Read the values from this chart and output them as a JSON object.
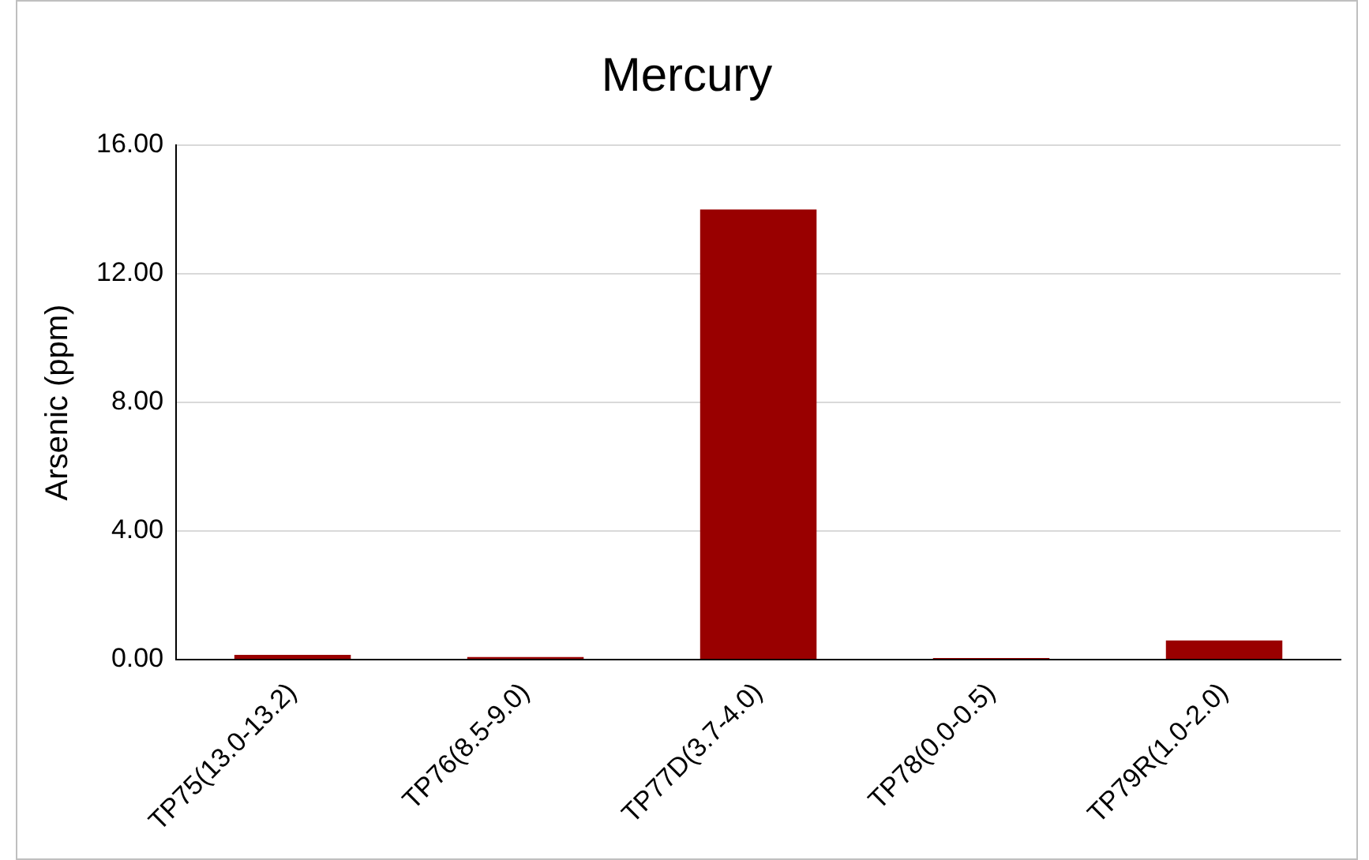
{
  "chart_data": {
    "type": "bar",
    "title": "Mercury",
    "ylabel": "Arsenic (ppm)",
    "categories": [
      "TP75(13.0-13.2)",
      "TP76(8.5-9.0)",
      "TP77D(3.7-4.0)",
      "TP78(0.0-0.5)",
      "TP79R(1.0-2.0)"
    ],
    "values": [
      0.15,
      0.08,
      14.0,
      0.05,
      0.6
    ],
    "color": "#990000",
    "ylim": [
      0,
      16
    ],
    "yticks": [
      {
        "value": 0,
        "label": "0.00"
      },
      {
        "value": 4,
        "label": "4.00"
      },
      {
        "value": 8,
        "label": "8.00"
      },
      {
        "value": 12,
        "label": "12.00"
      },
      {
        "value": 16,
        "label": "16.00"
      }
    ],
    "grid": "y",
    "legend": false
  }
}
